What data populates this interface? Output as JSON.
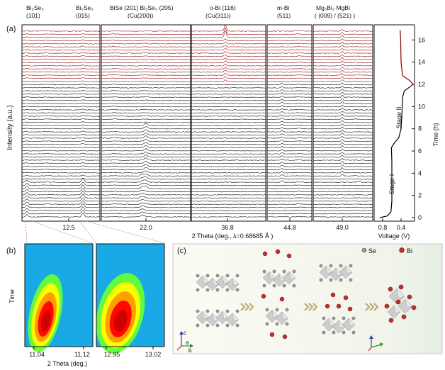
{
  "panel_a": {
    "label": "(a)",
    "ylabel": "Intensity  (a.u.)",
    "xlabel": "2 Theta (deg., λ=0.68685 Å )",
    "peak_labels": [
      {
        "line1": "Bi₂Se₃",
        "line2": "(101)"
      },
      {
        "line1": "Bi₂Se₃",
        "line2": "(015)"
      },
      {
        "line1": "BiSe (201) Bi₂Se₃ (205)",
        "line2": "(Cu(200))"
      },
      {
        "line1": "o-Bi (116)",
        "line2": "(Cu(311))"
      },
      {
        "line1": "m-Bi",
        "line2": "(511)"
      },
      {
        "line1": "Mg₃Bi₂  MgBi",
        "line2": "( (009)  /  (521) )"
      }
    ],
    "subpanel_ticks": [
      "12.5",
      "22.0",
      "36.8",
      "44.8",
      "49.0"
    ],
    "n_patterns": 60,
    "n_red_patterns": 17,
    "colors": {
      "stage1": "#000000",
      "stage2": "#8b0000"
    },
    "voltage_panel": {
      "xlabel": "Voltage (V)",
      "xticks": [
        "0.8",
        "0.4"
      ],
      "ylabel": "Time (h)",
      "yticks": [
        "0",
        "2",
        "4",
        "6",
        "8",
        "10",
        "12",
        "14",
        "16"
      ],
      "stage1_label": "Stage I",
      "stage2_label": "Stage II"
    }
  },
  "panel_b": {
    "label": "(b)",
    "ylabel": "Time",
    "xlabel": "2 Theta (deg.)",
    "left_ticks": [
      "11.04",
      "11.12"
    ],
    "right_ticks": [
      "12.95",
      "13.02"
    ],
    "colormap": [
      "#19a9e6",
      "#66ff33",
      "#ffff00",
      "#ff9900",
      "#ff0000",
      "#cc0000"
    ]
  },
  "panel_c": {
    "label": "(c)",
    "legend": [
      {
        "name": "Se",
        "color": "#9a9a9a"
      },
      {
        "name": "Bi",
        "color": "#c0302a"
      }
    ],
    "axes": {
      "a": "a",
      "b": "b",
      "c": "c"
    }
  }
}
